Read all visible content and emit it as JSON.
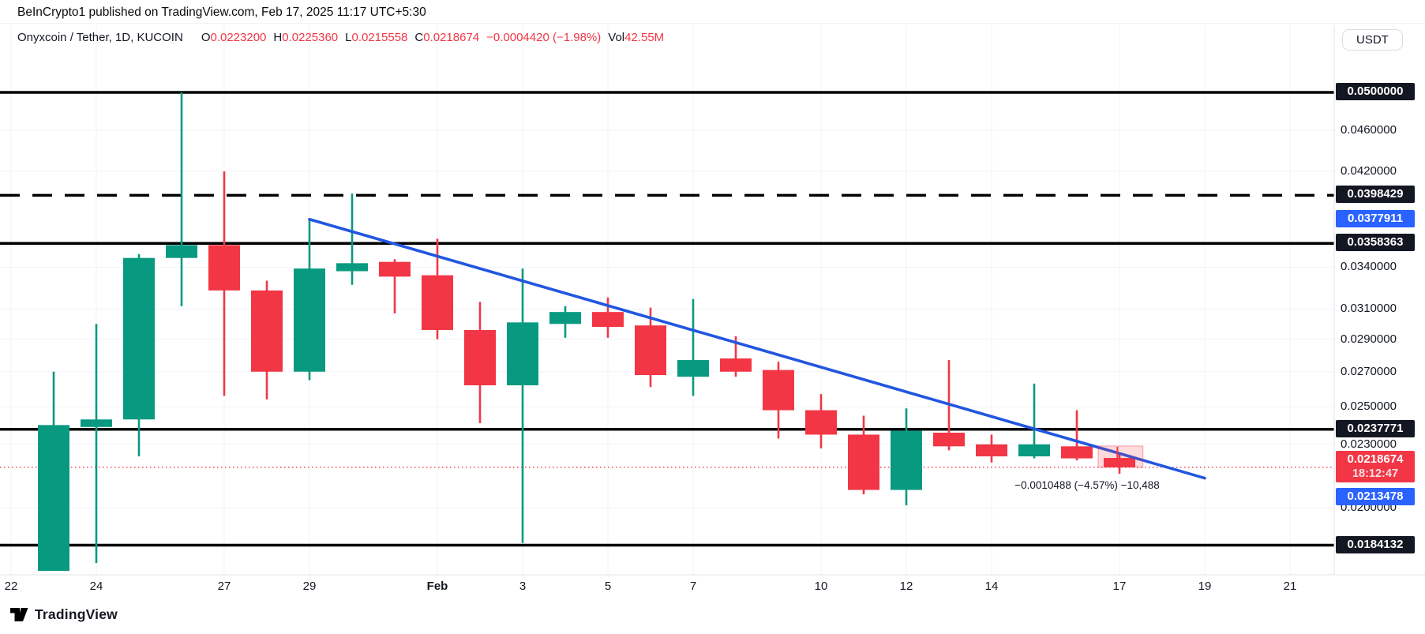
{
  "attribution": "BeInCrypto1 published on TradingView.com, Feb 17, 2025 11:17 UTC+5:30",
  "watermark": "TradingView",
  "axis_button": "USDT",
  "header": {
    "symbol": "Onyxcoin / Tether, 1D, KUCOIN",
    "items": [
      {
        "label": "O",
        "value": "0.0223200"
      },
      {
        "label": "H",
        "value": "0.0225360"
      },
      {
        "label": "L",
        "value": "0.0215558"
      },
      {
        "label": "C",
        "value": "0.0218674"
      },
      {
        "label": "",
        "value": "−0.0004420 (−1.98%)"
      },
      {
        "label": "Vol",
        "value": "42.55M"
      }
    ]
  },
  "colors": {
    "up": "#089981",
    "down": "#f23645",
    "trendline": "#2156e0",
    "badge_blue": "#2962ff",
    "badge_dark": "#131722",
    "badge_red": "#f23645",
    "grid": "#f0f3fa",
    "level": "#000000",
    "axis_line": "#e0e3eb"
  },
  "chart_data": {
    "type": "candlestick",
    "title": "Onyxcoin / Tether, 1D, KUCOIN",
    "ylabel": "price (USDT)",
    "y_scale": "log",
    "xlim_dates": [
      "Jan 22",
      "Feb 21"
    ],
    "ylim": [
      0.017,
      0.052
    ],
    "candles": [
      {
        "date": "Jan 23",
        "day": 1,
        "o": 0.0174,
        "h": 0.027,
        "l": 0.0174,
        "c": 0.024
      },
      {
        "date": "Jan 24",
        "day": 2,
        "o": 0.0239,
        "h": 0.03,
        "l": 0.0177,
        "c": 0.0243
      },
      {
        "date": "Jan 25",
        "day": 3,
        "o": 0.0243,
        "h": 0.035,
        "l": 0.0224,
        "c": 0.0347
      },
      {
        "date": "Jan 26",
        "day": 4,
        "o": 0.0347,
        "h": 0.05,
        "l": 0.0312,
        "c": 0.0357
      },
      {
        "date": "Jan 27",
        "day": 5,
        "o": 0.0357,
        "h": 0.042,
        "l": 0.0256,
        "c": 0.0323
      },
      {
        "date": "Jan 28",
        "day": 6,
        "o": 0.0323,
        "h": 0.033,
        "l": 0.0254,
        "c": 0.027
      },
      {
        "date": "Jan 29",
        "day": 7,
        "o": 0.027,
        "h": 0.0378,
        "l": 0.0265,
        "c": 0.0339
      },
      {
        "date": "Jan 30",
        "day": 8,
        "o": 0.0337,
        "h": 0.04,
        "l": 0.0327,
        "c": 0.0343
      },
      {
        "date": "Jan 31",
        "day": 9,
        "o": 0.0344,
        "h": 0.0346,
        "l": 0.0307,
        "c": 0.0333
      },
      {
        "date": "Feb 1",
        "day": 10,
        "o": 0.0334,
        "h": 0.0362,
        "l": 0.029,
        "c": 0.0296
      },
      {
        "date": "Feb 2",
        "day": 11,
        "o": 0.0296,
        "h": 0.0315,
        "l": 0.0241,
        "c": 0.0262
      },
      {
        "date": "Feb 3",
        "day": 12,
        "o": 0.0262,
        "h": 0.0339,
        "l": 0.0185,
        "c": 0.0301
      },
      {
        "date": "Feb 4",
        "day": 13,
        "o": 0.03,
        "h": 0.0312,
        "l": 0.0291,
        "c": 0.0308
      },
      {
        "date": "Feb 5",
        "day": 14,
        "o": 0.0308,
        "h": 0.0318,
        "l": 0.0291,
        "c": 0.0298
      },
      {
        "date": "Feb 6",
        "day": 15,
        "o": 0.0299,
        "h": 0.0311,
        "l": 0.0261,
        "c": 0.0268
      },
      {
        "date": "Feb 7",
        "day": 16,
        "o": 0.0267,
        "h": 0.0317,
        "l": 0.0256,
        "c": 0.0277
      },
      {
        "date": "Feb 8",
        "day": 17,
        "o": 0.0278,
        "h": 0.0292,
        "l": 0.0267,
        "c": 0.027
      },
      {
        "date": "Feb 9",
        "day": 18,
        "o": 0.0271,
        "h": 0.0276,
        "l": 0.0233,
        "c": 0.0248
      },
      {
        "date": "Feb 10",
        "day": 19,
        "o": 0.0248,
        "h": 0.0257,
        "l": 0.0228,
        "c": 0.0235
      },
      {
        "date": "Feb 11",
        "day": 20,
        "o": 0.0235,
        "h": 0.0245,
        "l": 0.0206,
        "c": 0.0208
      },
      {
        "date": "Feb 12",
        "day": 21,
        "o": 0.0208,
        "h": 0.0249,
        "l": 0.0201,
        "c": 0.0237
      },
      {
        "date": "Feb 13",
        "day": 22,
        "o": 0.0236,
        "h": 0.0277,
        "l": 0.0227,
        "c": 0.0229
      },
      {
        "date": "Feb 14",
        "day": 23,
        "o": 0.023,
        "h": 0.0235,
        "l": 0.0221,
        "c": 0.0224
      },
      {
        "date": "Feb 15",
        "day": 24,
        "o": 0.0224,
        "h": 0.0263,
        "l": 0.0223,
        "c": 0.023
      },
      {
        "date": "Feb 16",
        "day": 25,
        "o": 0.0229,
        "h": 0.0248,
        "l": 0.0222,
        "c": 0.0223
      },
      {
        "date": "Feb 17",
        "day": 26,
        "o": 0.02232,
        "h": 0.022536,
        "l": 0.0215558,
        "c": 0.0218674
      }
    ],
    "x_ticks": [
      {
        "label": "22",
        "day": 0
      },
      {
        "label": "24",
        "day": 2
      },
      {
        "label": "27",
        "day": 5
      },
      {
        "label": "29",
        "day": 7
      },
      {
        "label": "Feb",
        "day": 10,
        "bold": true
      },
      {
        "label": "3",
        "day": 12
      },
      {
        "label": "5",
        "day": 14
      },
      {
        "label": "7",
        "day": 16
      },
      {
        "label": "10",
        "day": 19
      },
      {
        "label": "12",
        "day": 21
      },
      {
        "label": "14",
        "day": 23
      },
      {
        "label": "17",
        "day": 26
      },
      {
        "label": "19",
        "day": 28
      },
      {
        "label": "21",
        "day": 30
      }
    ],
    "y_ticks": [
      {
        "label": "0.0460000",
        "price": 0.046
      },
      {
        "label": "0.0420000",
        "price": 0.042
      },
      {
        "label": "0.0340000",
        "price": 0.034
      },
      {
        "label": "0.0310000",
        "price": 0.031
      },
      {
        "label": "0.0290000",
        "price": 0.029
      },
      {
        "label": "0.0270000",
        "price": 0.027
      },
      {
        "label": "0.0250000",
        "price": 0.025
      },
      {
        "label": "0.0230000",
        "price": 0.023
      },
      {
        "label": "0.0200000",
        "price": 0.02
      }
    ],
    "levels": [
      {
        "price": 0.05,
        "style": "solid"
      },
      {
        "price": 0.0398429,
        "style": "dashed"
      },
      {
        "price": 0.0358363,
        "style": "solid"
      },
      {
        "price": 0.0237771,
        "style": "solid"
      },
      {
        "price": 0.0184132,
        "style": "solid"
      }
    ],
    "trendline": {
      "from": {
        "date": "Jan 29",
        "day": 7,
        "price": 0.0377911
      },
      "to": {
        "date": "Feb 19",
        "day": 28,
        "price": 0.0213478
      }
    },
    "last_price": {
      "price": 0.0218674,
      "countdown": "18:12:47"
    },
    "badges": [
      {
        "text": "0.0500000",
        "price": 0.05,
        "style": "dark"
      },
      {
        "text": "0.0398429",
        "price": 0.0398429,
        "style": "dark"
      },
      {
        "text": "0.0377911",
        "price": 0.0377911,
        "style": "blue"
      },
      {
        "text": "0.0358363",
        "price": 0.0358363,
        "style": "dark"
      },
      {
        "text": "0.0237771",
        "price": 0.0237771,
        "style": "dark"
      },
      {
        "text": "0.0218674",
        "sub": "18:12:47",
        "price": 0.0218674,
        "style": "red"
      },
      {
        "text": "0.0213478",
        "price": 0.0213478,
        "style": "blue",
        "y": 630
      },
      {
        "text": "0.0184132",
        "price": 0.0184132,
        "style": "dark"
      }
    ],
    "range_tool": {
      "label": "−0.0010488 (−4.57%) −10,488",
      "from_date": "Feb 16",
      "to_date": "Feb 17",
      "day_from": 25.5,
      "day_to": 26.55,
      "from_price": 0.0229162,
      "to_price": 0.0218674
    }
  }
}
